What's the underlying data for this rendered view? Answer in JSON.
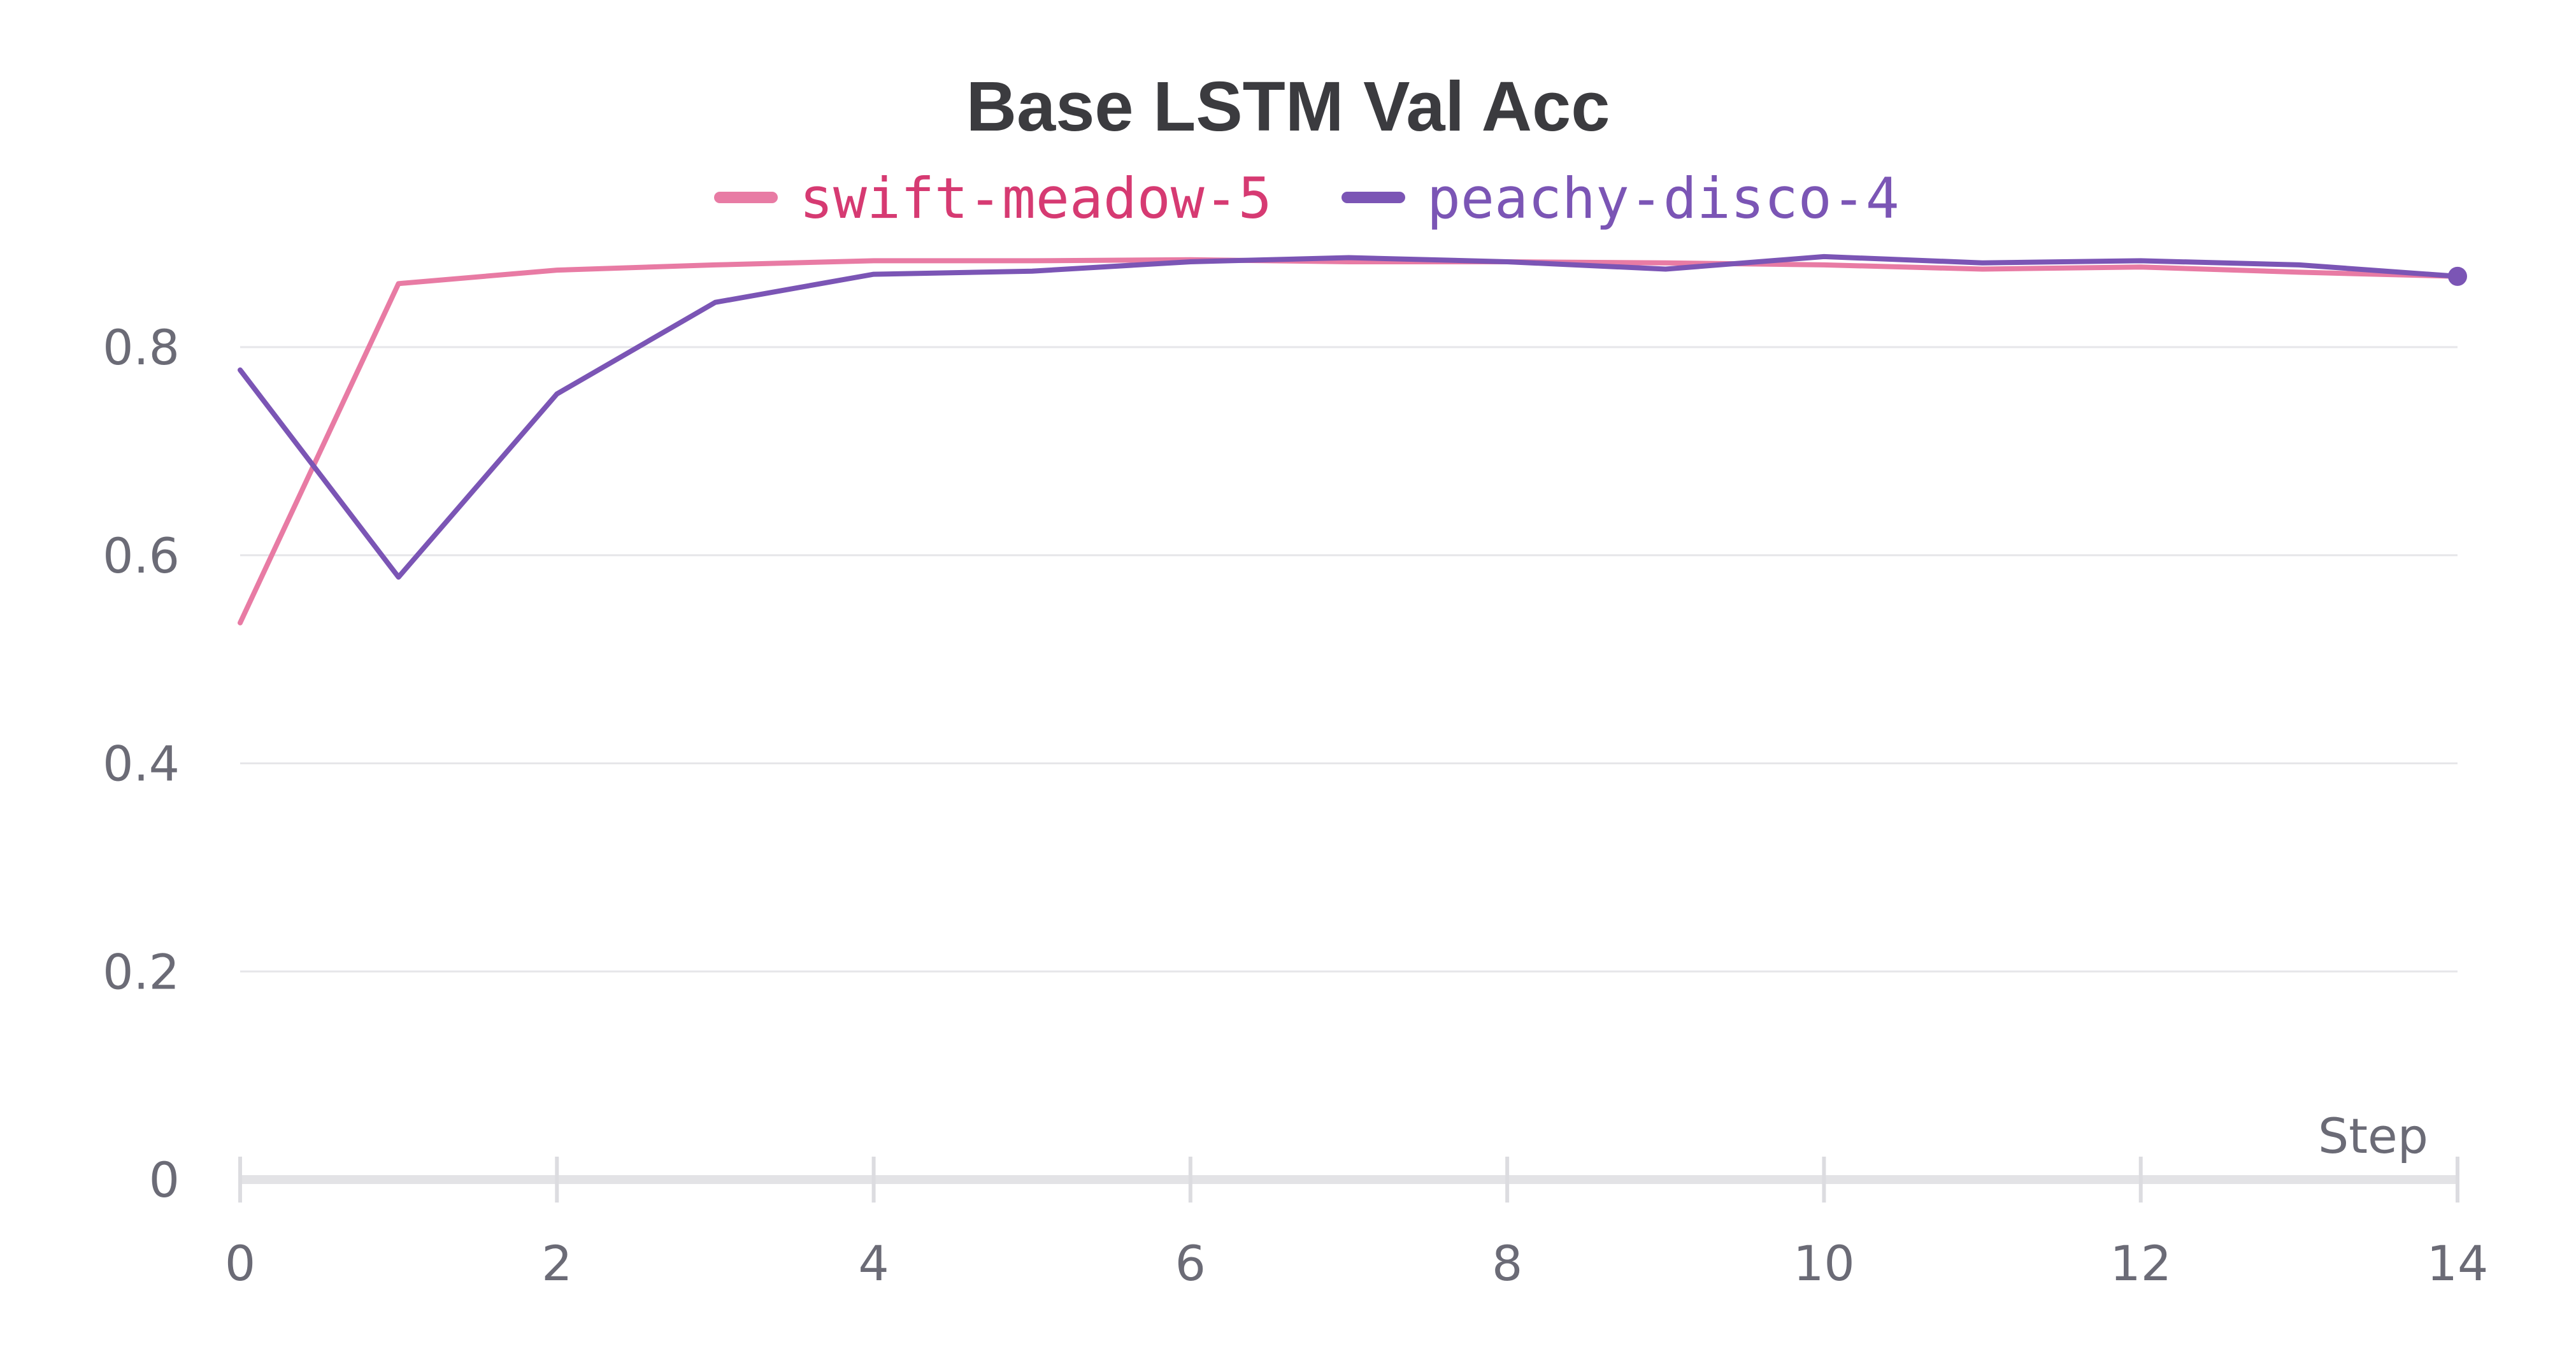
{
  "chart_data": {
    "type": "line",
    "title": "Base LSTM Val Acc",
    "xlabel": "Step",
    "ylabel": "",
    "xlim": [
      0,
      14
    ],
    "ylim": [
      0,
      0.9
    ],
    "x_ticks": [
      0,
      2,
      4,
      6,
      8,
      10,
      12,
      14
    ],
    "y_ticks": [
      0,
      0.2,
      0.4,
      0.6,
      0.8
    ],
    "x_tick_labels": [
      "0",
      "2",
      "4",
      "6",
      "8",
      "10",
      "12",
      "14"
    ],
    "y_tick_labels": [
      "0",
      "0.2",
      "0.4",
      "0.6",
      "0.8"
    ],
    "grid": true,
    "legend_position": "top-center",
    "x": [
      0,
      1,
      2,
      3,
      4,
      5,
      6,
      7,
      8,
      9,
      10,
      11,
      12,
      13,
      14
    ],
    "series": [
      {
        "name": "swift-meadow-5",
        "color": "#e87ba4",
        "legend_text_color": "#d63a72",
        "values": [
          0.535,
          0.861,
          0.874,
          0.879,
          0.883,
          0.883,
          0.884,
          0.882,
          0.882,
          0.881,
          0.879,
          0.875,
          0.877,
          0.872,
          0.868
        ]
      },
      {
        "name": "peachy-disco-4",
        "color": "#7b55b5",
        "legend_text_color": "#7b55b5",
        "values": [
          0.778,
          0.579,
          0.755,
          0.843,
          0.87,
          0.873,
          0.882,
          0.886,
          0.882,
          0.875,
          0.887,
          0.881,
          0.883,
          0.879,
          0.868
        ]
      }
    ]
  }
}
